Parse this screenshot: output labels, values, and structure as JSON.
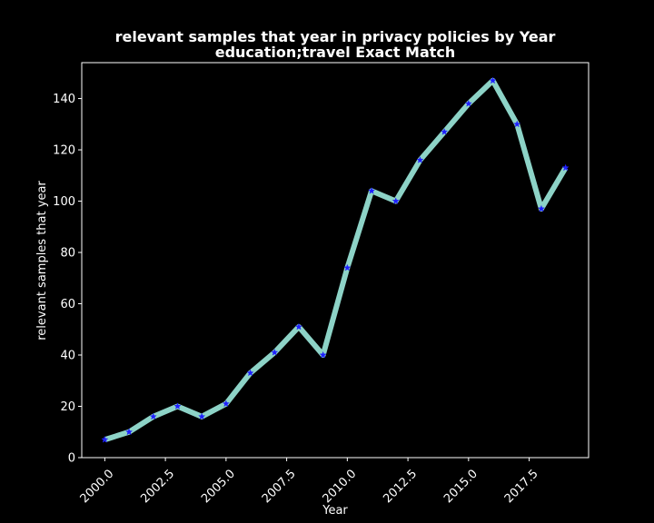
{
  "chart_data": {
    "type": "line",
    "title": "relevant samples that year in privacy policies by Year",
    "subtitle": "education;travel Exact Match",
    "xlabel": "Year",
    "ylabel": "relevant samples that year",
    "xlim": [
      1999.05,
      2019.95
    ],
    "ylim": [
      0,
      154
    ],
    "x_ticks": [
      2000.0,
      2002.5,
      2005.0,
      2007.5,
      2010.0,
      2012.5,
      2015.0,
      2017.5
    ],
    "x_tick_labels": [
      "2000.0",
      "2002.5",
      "2005.0",
      "2007.5",
      "2010.0",
      "2012.5",
      "2015.0",
      "2017.5"
    ],
    "y_ticks": [
      0,
      20,
      40,
      60,
      80,
      100,
      120,
      140
    ],
    "y_tick_labels": [
      "0",
      "20",
      "40",
      "60",
      "80",
      "100",
      "120",
      "140"
    ],
    "grid": false,
    "series": [
      {
        "x": [
          2000,
          2001,
          2002,
          2003,
          2004,
          2005,
          2006,
          2007,
          2008,
          2009,
          2010,
          2011,
          2012,
          2013,
          2014,
          2015,
          2016,
          2017,
          2018,
          2019
        ],
        "values": [
          7,
          10,
          16,
          20,
          16,
          21,
          33,
          41,
          51,
          40,
          74,
          104,
          100,
          116,
          127,
          138,
          147,
          130,
          97,
          113
        ],
        "line_color": "#8dd3c7",
        "marker_color": "#1f1fff",
        "marker": "star"
      }
    ]
  }
}
